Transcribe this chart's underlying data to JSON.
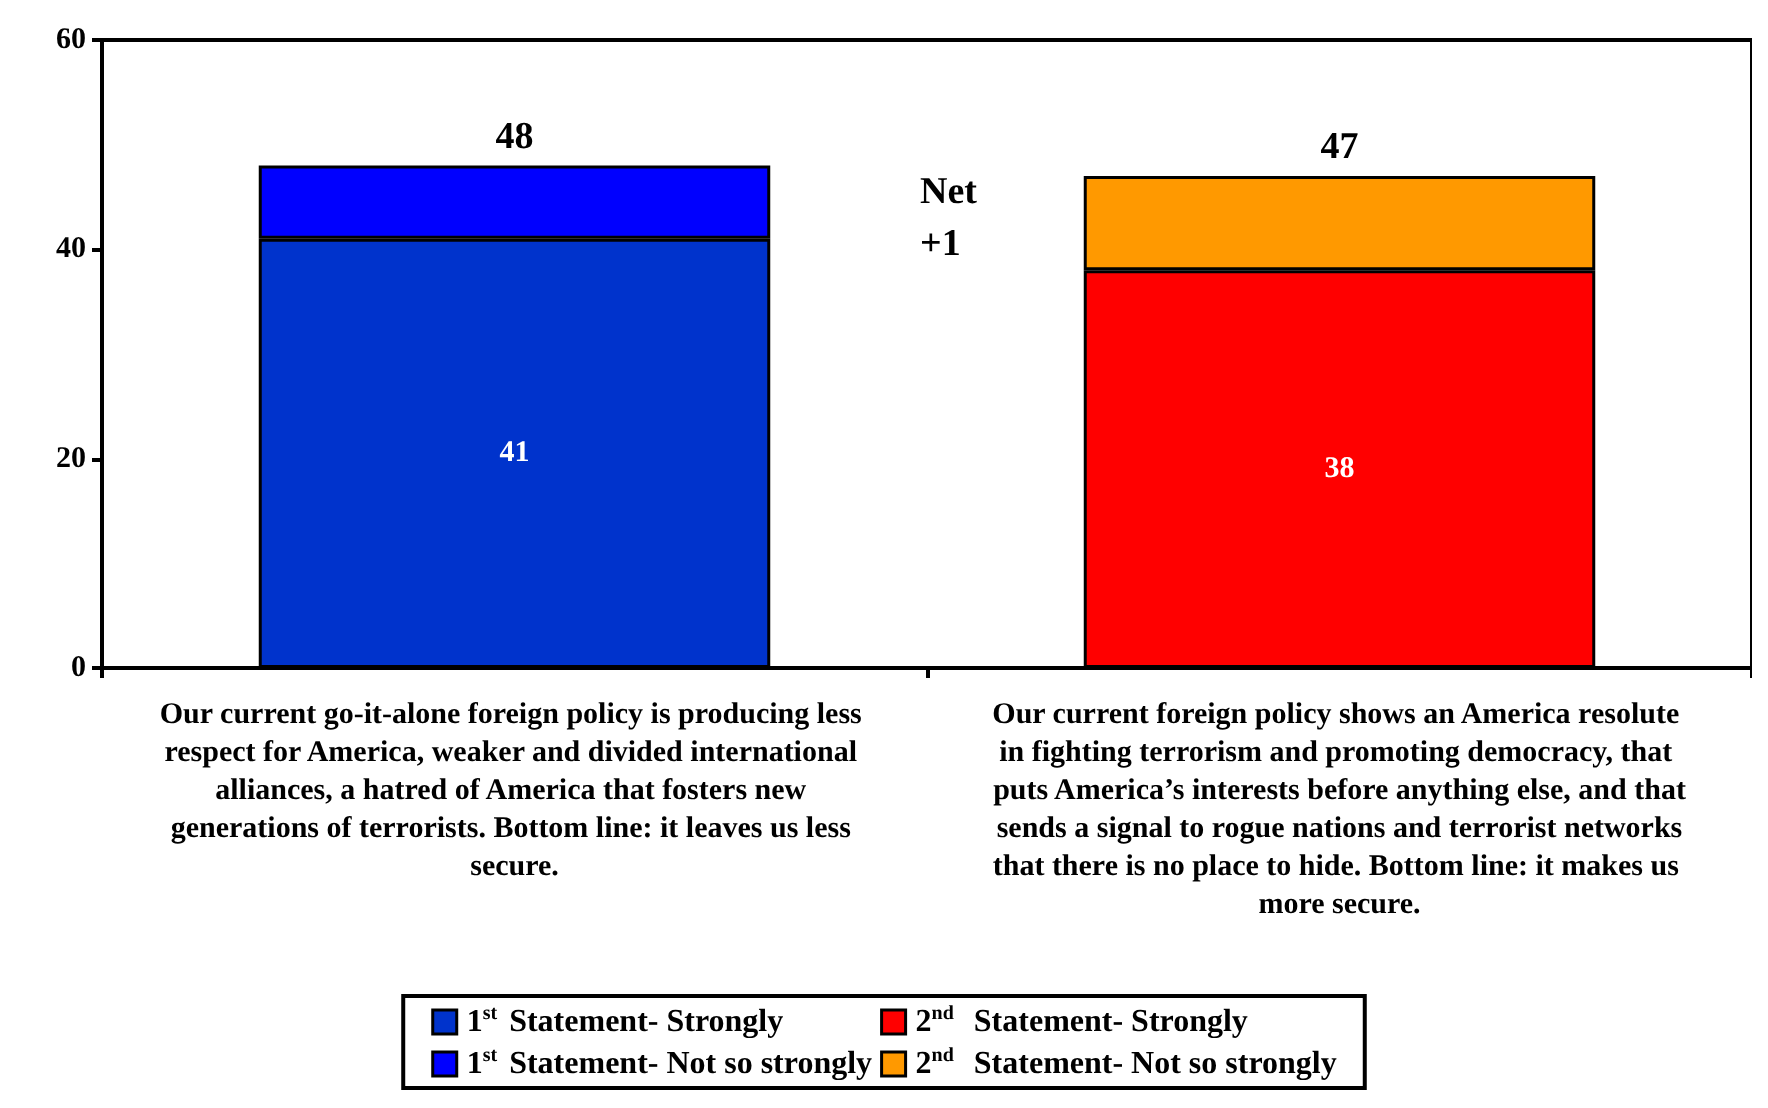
{
  "chart_data": {
    "type": "bar",
    "stacked": true,
    "categories": [
      "Our current go-it-alone foreign policy is producing less respect for America, weaker and divided international alliances, a hatred of America that fosters new generations of terrorists. Bottom line: it leaves us less secure.",
      "Our current foreign policy shows an America resolute in fighting terrorism and promoting democracy, that puts America’s interests before anything else, and that sends a signal to rogue nations and terrorist networks that there is no place to hide. Bottom line: it makes us more secure."
    ],
    "series": [
      {
        "name": "1$^{st}$ Statement- Strongly",
        "color": "#0033cc",
        "values": [
          41,
          null
        ],
        "value_labels": [
          "41",
          null
        ]
      },
      {
        "name": "1$^{st}$ Statement- Not so strongly",
        "color": "#0000ff",
        "values": [
          7,
          null
        ]
      },
      {
        "name": "2$^{nd}$  Statement- Strongly",
        "color": "#ff0000",
        "values": [
          null,
          38
        ],
        "value_labels": [
          null,
          "38"
        ]
      },
      {
        "name": "2$^{nd}$  Statement- Not so strongly",
        "color": "#ff9900",
        "values": [
          null,
          9
        ]
      }
    ],
    "totals": [
      "48",
      "47"
    ],
    "ylim": [
      0,
      60
    ],
    "yticks": [
      0,
      20,
      40,
      60
    ],
    "grid": false,
    "legend": "bottom",
    "annotations": [
      "Net +1"
    ]
  }
}
